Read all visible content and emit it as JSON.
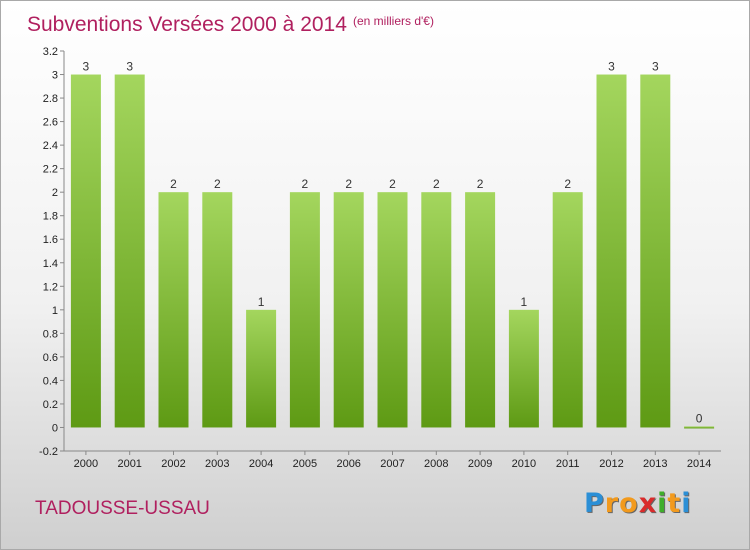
{
  "chart_data": {
    "type": "bar",
    "title": "Subventions Versées 2000 à 2014",
    "subtitle": "(en milliers d'€)",
    "categories": [
      "2000",
      "2001",
      "2002",
      "2003",
      "2004",
      "2005",
      "2006",
      "2007",
      "2008",
      "2009",
      "2010",
      "2011",
      "2012",
      "2013",
      "2014"
    ],
    "values": [
      3,
      3,
      2,
      2,
      1,
      2,
      2,
      2,
      2,
      2,
      1,
      2,
      3,
      3,
      0
    ],
    "value_labels": [
      "3",
      "3",
      "2",
      "2",
      "1",
      "2",
      "2",
      "2",
      "2",
      "2",
      "1",
      "2",
      "3",
      "3",
      "0"
    ],
    "ylim": [
      -0.2,
      3.2
    ],
    "yticks": [
      "-0.2",
      "0",
      "0.2",
      "0.4",
      "0.6",
      "0.8",
      "1",
      "1.2",
      "1.4",
      "1.6",
      "1.8",
      "2",
      "2.2",
      "2.4",
      "2.6",
      "2.8",
      "3",
      "3.2"
    ],
    "xlabel": "",
    "ylabel": "",
    "grid": false,
    "bar_color_light": "#a4d65e",
    "bar_color_dark": "#5e9a14"
  },
  "place_name": "TADOUSSE-USSAU",
  "logo": {
    "letters": [
      "P",
      "r",
      "o",
      "x",
      "i",
      "t",
      "i"
    ],
    "colors": [
      "#2b8fd6",
      "#f29a1d",
      "#f29a1d",
      "#d92b2b",
      "#3fae2a",
      "#f29a1d",
      "#2b8fd6"
    ]
  }
}
